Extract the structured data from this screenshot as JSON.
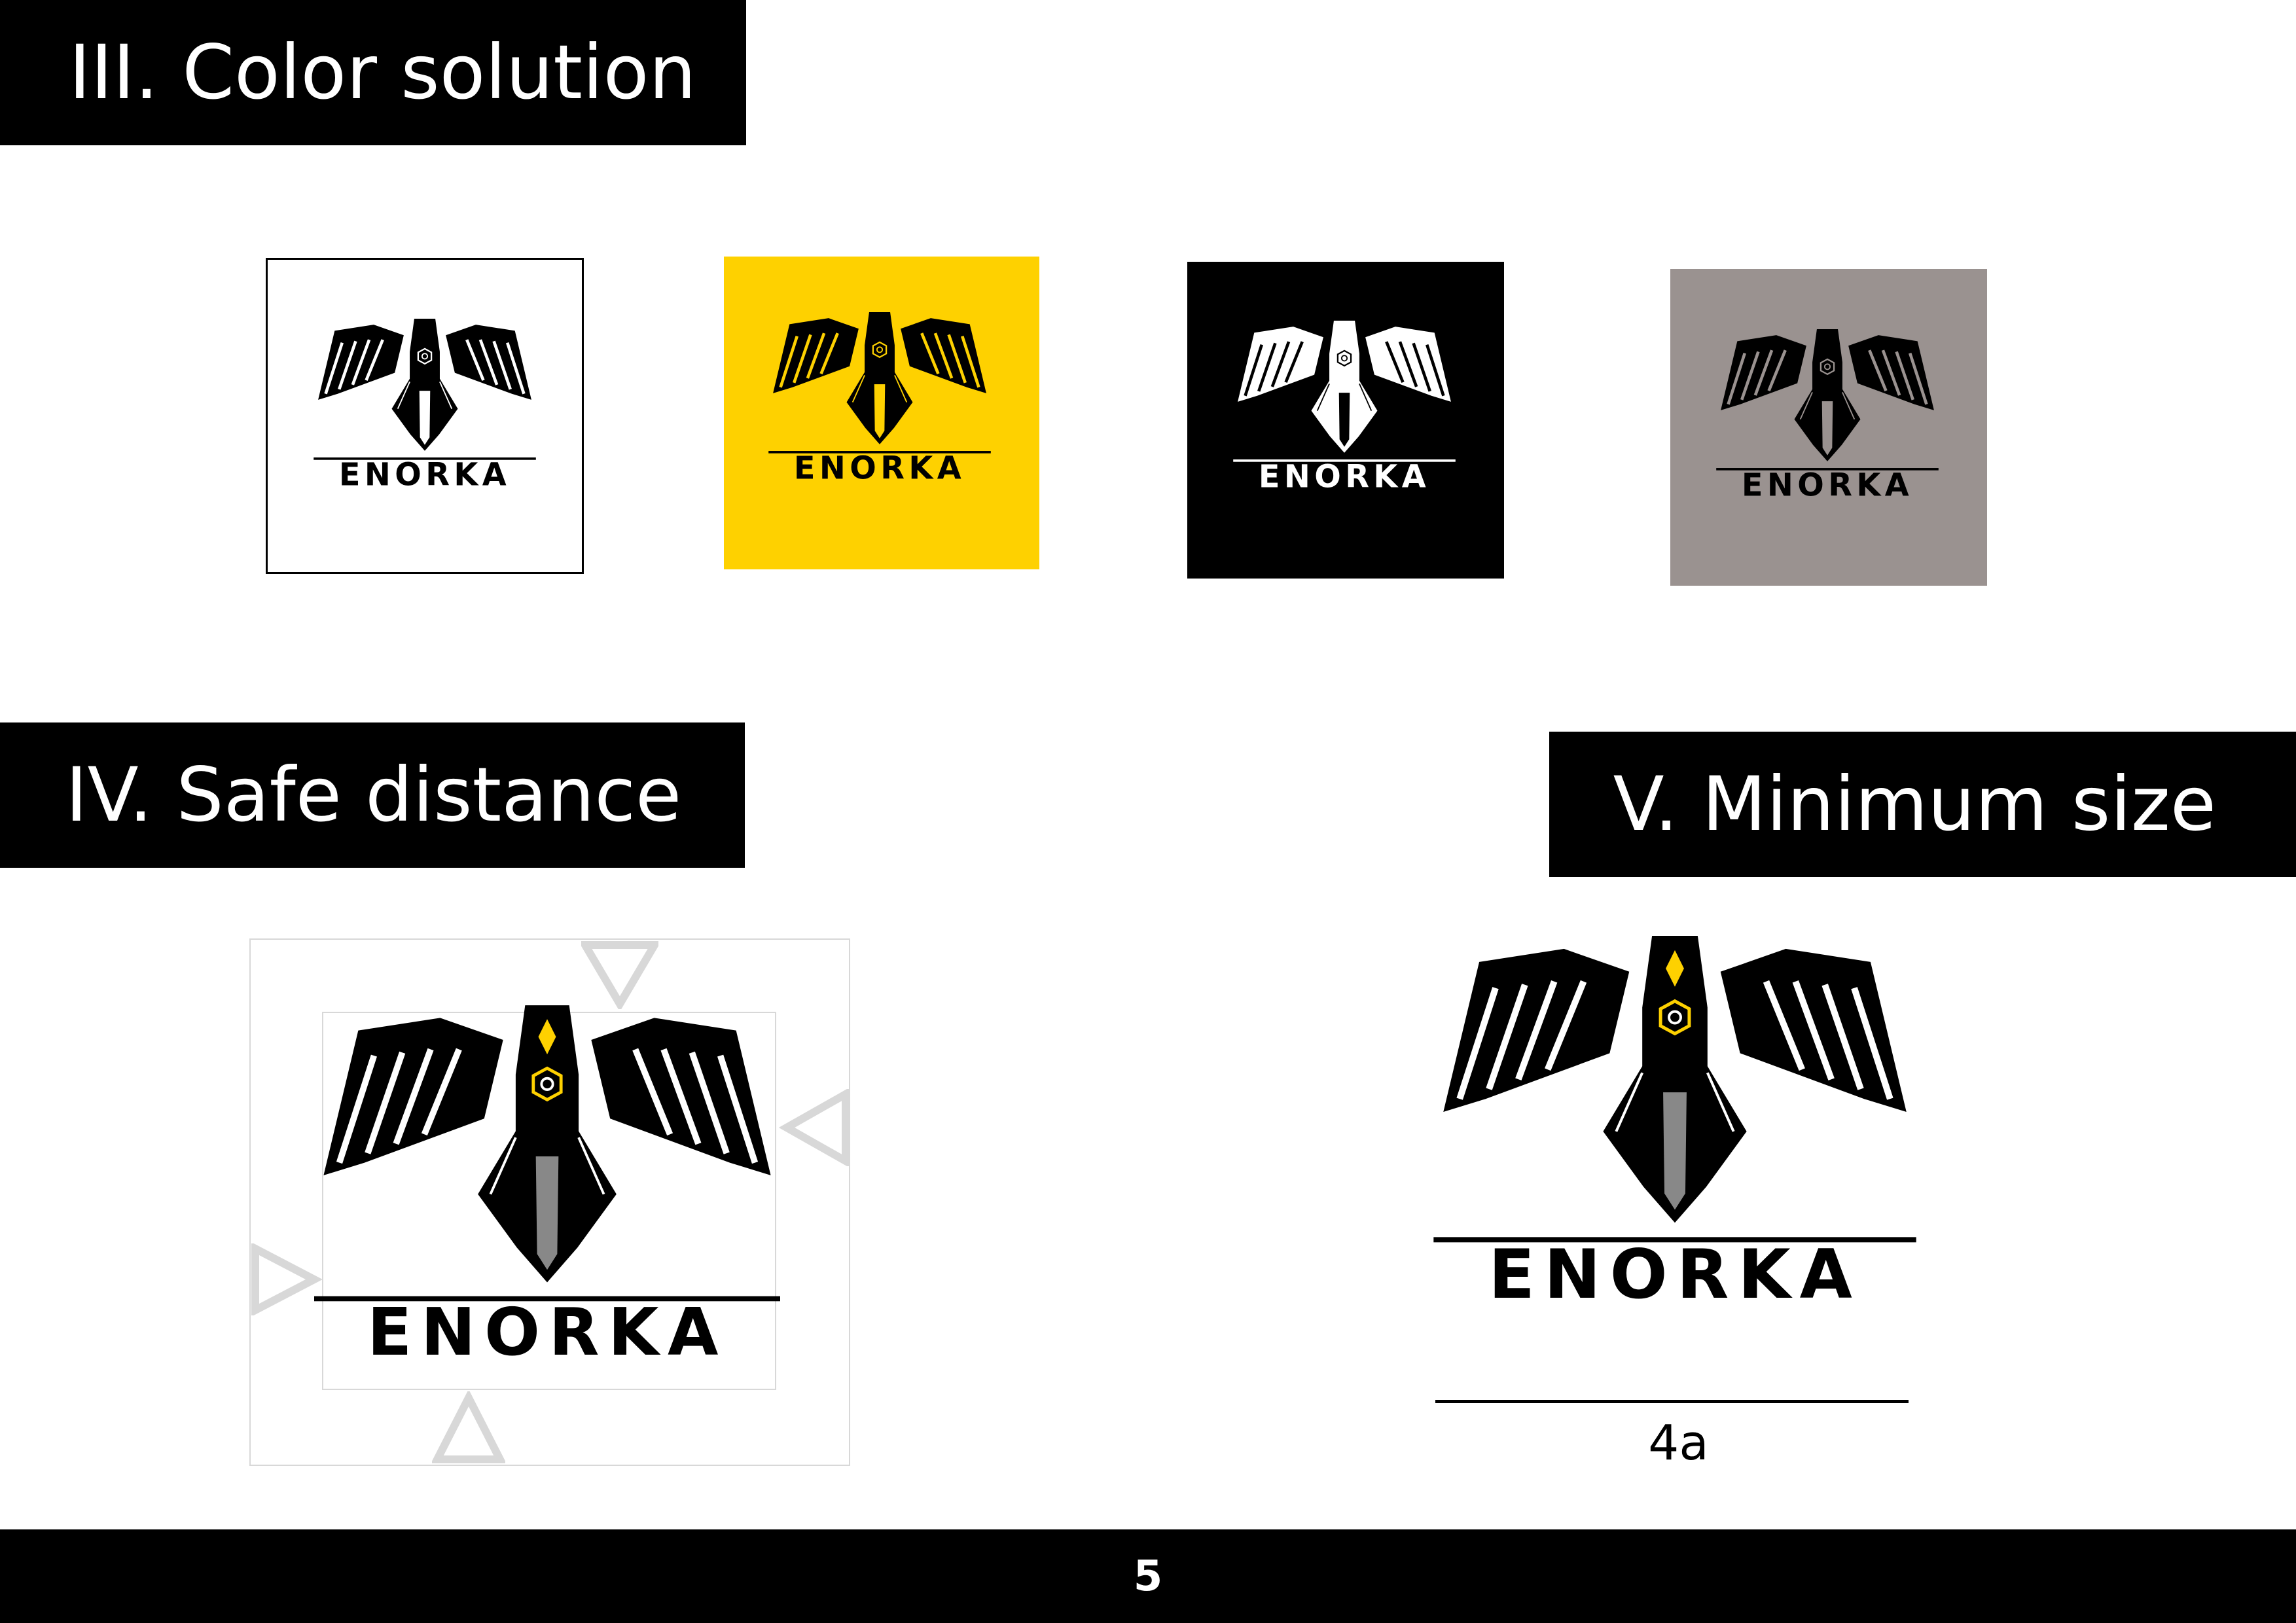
{
  "sections": {
    "color_solution": {
      "title": "III. Color solution"
    },
    "safe_distance": {
      "title": "IV. Safe distance"
    },
    "minimum_size": {
      "title": "V. Minimum size",
      "measure_label": "4a"
    }
  },
  "logo": {
    "wordmark": "ENORKA"
  },
  "color_variants": [
    {
      "name": "white",
      "background": "#ffffff",
      "foreground": "#000000",
      "border": "#000000"
    },
    {
      "name": "yellow",
      "background": "#fed100",
      "foreground": "#000000"
    },
    {
      "name": "black",
      "background": "#000000",
      "foreground": "#ffffff"
    },
    {
      "name": "grey",
      "background": "#9a9290",
      "foreground": "#000000"
    }
  ],
  "colors": {
    "accent": "#fed100",
    "tail_grey": "#888888",
    "guide_grey": "#d8d8d8"
  },
  "footer": {
    "page_number": "5"
  }
}
